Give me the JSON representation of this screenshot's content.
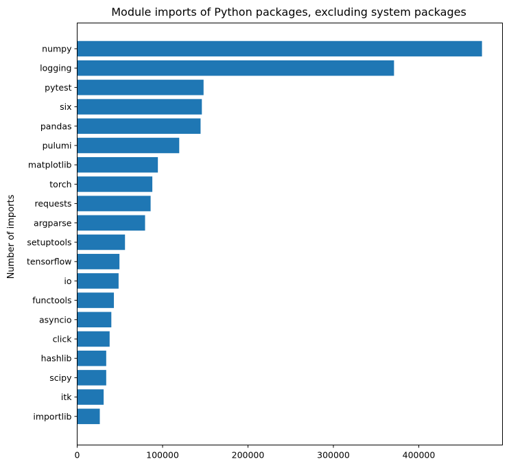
{
  "chart_data": {
    "type": "bar",
    "orientation": "horizontal",
    "title": "Module imports of Python packages, excluding system packages",
    "xlabel": "",
    "ylabel": "Number of imports",
    "xlim": [
      0,
      498000
    ],
    "xticks": [
      "0",
      "100000",
      "200000",
      "300000",
      "400000"
    ],
    "grid": false,
    "bar_color": "#1f77b4",
    "categories": [
      "numpy",
      "logging",
      "pytest",
      "six",
      "pandas",
      "pulumi",
      "matplotlib",
      "torch",
      "requests",
      "argparse",
      "setuptools",
      "tensorflow",
      "io",
      "functools",
      "asyncio",
      "click",
      "hashlib",
      "scipy",
      "itk",
      "importlib"
    ],
    "values": [
      474000,
      371000,
      148000,
      146000,
      144500,
      119500,
      94500,
      88000,
      86000,
      79500,
      56000,
      49500,
      48500,
      43000,
      40000,
      38000,
      34000,
      34000,
      31000,
      26500
    ]
  }
}
